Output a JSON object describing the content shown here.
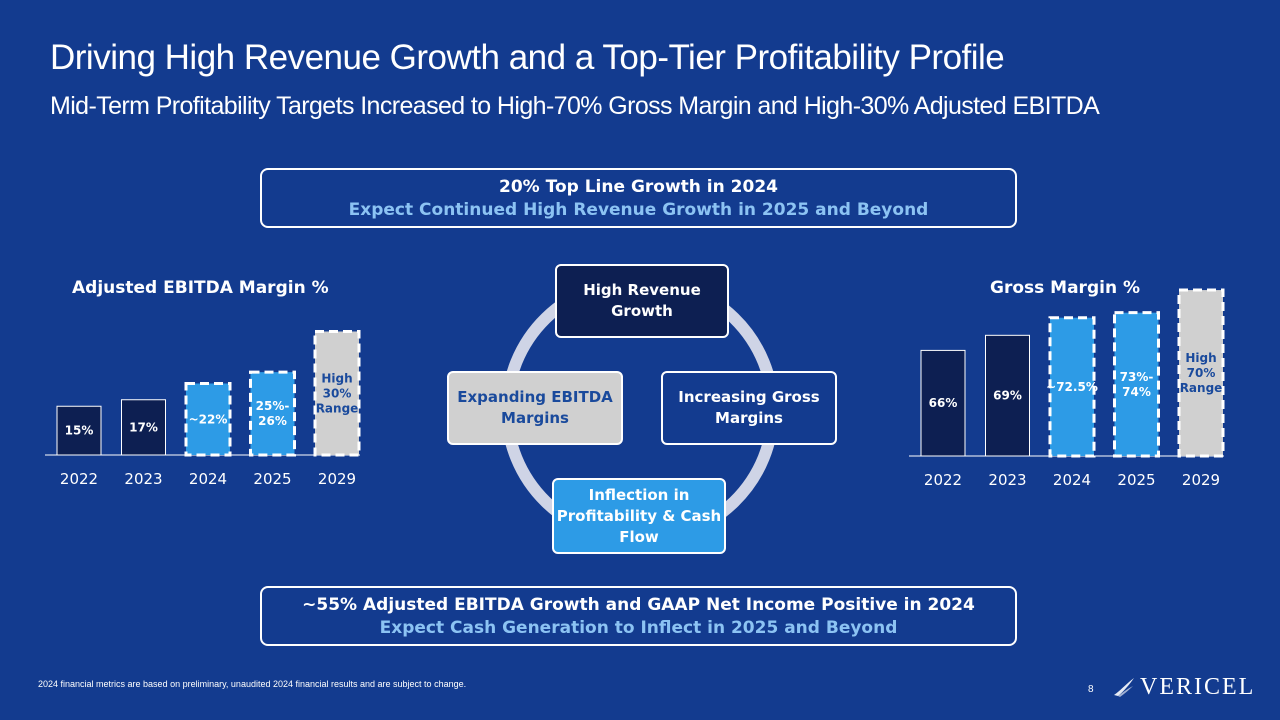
{
  "title": "Driving High Revenue Growth and a Top-Tier Profitability Profile",
  "subtitle": "Mid-Term Profitability Targets Increased to High-70% Gross Margin and High-30% Adjusted EBITDA",
  "top_callout": {
    "line1": "20% Top Line Growth in 2024",
    "line2": "Expect Continued High Revenue Growth in 2025 and Beyond"
  },
  "bottom_callout": {
    "line1": "~55% Adjusted EBITDA Growth and GAAP Net Income Positive in 2024",
    "line2": "Expect Cash Generation to Inflect in 2025 and Beyond"
  },
  "cycle": {
    "high_revenue": "High Revenue Growth",
    "increasing_gross": "Increasing Gross Margins",
    "expanding_ebitda": "Expanding EBITDA Margins",
    "inflection": "Inflection in Profitability & Cash Flow"
  },
  "colors": {
    "background": "#133b8f",
    "actual": "#0d1f52",
    "projected": "#2d9be6",
    "target": "#d0d0d0",
    "accent_text": "#8cc3f3"
  },
  "chart_data": [
    {
      "type": "bar",
      "title": "Adjusted EBITDA Margin %",
      "categories": [
        "2022",
        "2023",
        "2024",
        "2025",
        "2029"
      ],
      "values": [
        15,
        17,
        22,
        25.5,
        38
      ],
      "labels": [
        "15%",
        "17%",
        "~22%",
        "25%-26%",
        "High 30% Range"
      ],
      "kinds": [
        "actual",
        "actual",
        "projected",
        "projected",
        "target"
      ],
      "ylim": [
        0,
        40
      ],
      "xlabel": "",
      "ylabel": ""
    },
    {
      "type": "bar",
      "title": "Gross Margin %",
      "categories": [
        "2022",
        "2023",
        "2024",
        "2025",
        "2029"
      ],
      "values": [
        66,
        69,
        72.5,
        73.5,
        78
      ],
      "labels": [
        "66%",
        "69%",
        "~72.5%",
        "73%-74%",
        "High 70% Range"
      ],
      "kinds": [
        "actual",
        "actual",
        "projected",
        "projected",
        "target"
      ],
      "ylim": [
        45,
        80
      ],
      "xlabel": "",
      "ylabel": ""
    }
  ],
  "footnote": "2024 financial metrics are based on preliminary, unaudited 2024 financial results and are subject to change.",
  "page_number": "8",
  "logo_text": "VERICEL"
}
